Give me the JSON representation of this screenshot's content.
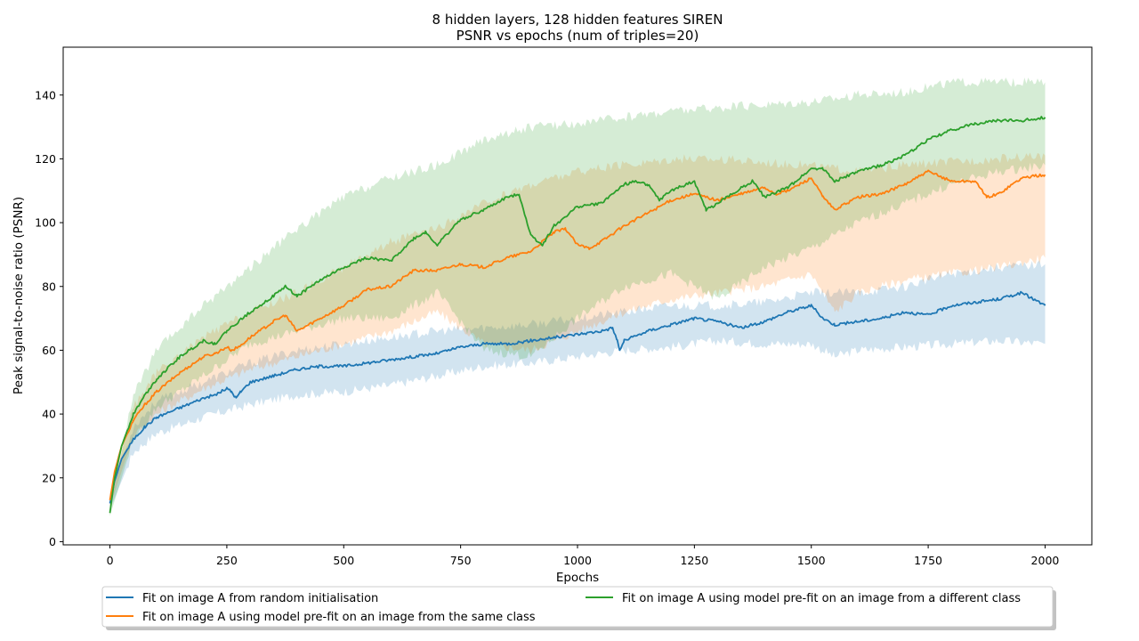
{
  "chart_data": {
    "type": "line",
    "title": [
      "8 hidden layers, 128 hidden features SIREN",
      "PSNR vs epochs (num of triples=20)"
    ],
    "xlabel": "Epochs",
    "ylabel": "Peak signal-to-noise ratio (PSNR)",
    "xlim": [
      -100,
      2100
    ],
    "ylim": [
      -1,
      155
    ],
    "xticks": [
      0,
      250,
      500,
      750,
      1000,
      1250,
      1500,
      1750,
      2000
    ],
    "yticks": [
      0,
      20,
      40,
      60,
      80,
      100,
      120,
      140
    ],
    "grid": false,
    "legend_position": "bottom-center",
    "band": "shaded spread around each series mean",
    "series": [
      {
        "name": "Fit on image A from random initialisation",
        "color": "#1f77b4",
        "points": [
          [
            0,
            12
          ],
          [
            10,
            19
          ],
          [
            25,
            26
          ],
          [
            50,
            32
          ],
          [
            75,
            36
          ],
          [
            100,
            39
          ],
          [
            150,
            42
          ],
          [
            200,
            45
          ],
          [
            225,
            46
          ],
          [
            250,
            48
          ],
          [
            260,
            47
          ],
          [
            270,
            45
          ],
          [
            280,
            47
          ],
          [
            300,
            50
          ],
          [
            350,
            52
          ],
          [
            400,
            54
          ],
          [
            450,
            55
          ],
          [
            500,
            55
          ],
          [
            550,
            56
          ],
          [
            600,
            57
          ],
          [
            650,
            58
          ],
          [
            700,
            59
          ],
          [
            750,
            61
          ],
          [
            800,
            62
          ],
          [
            850,
            62
          ],
          [
            900,
            63
          ],
          [
            950,
            64
          ],
          [
            1000,
            65
          ],
          [
            1050,
            66
          ],
          [
            1075,
            67
          ],
          [
            1085,
            63
          ],
          [
            1090,
            60
          ],
          [
            1100,
            63
          ],
          [
            1150,
            66
          ],
          [
            1200,
            68
          ],
          [
            1250,
            70
          ],
          [
            1300,
            69
          ],
          [
            1350,
            67
          ],
          [
            1400,
            69
          ],
          [
            1450,
            72
          ],
          [
            1500,
            74
          ],
          [
            1525,
            70
          ],
          [
            1550,
            68
          ],
          [
            1600,
            69
          ],
          [
            1650,
            70
          ],
          [
            1700,
            72
          ],
          [
            1750,
            71
          ],
          [
            1800,
            74
          ],
          [
            1850,
            75
          ],
          [
            1900,
            76
          ],
          [
            1950,
            78
          ],
          [
            1975,
            76
          ],
          [
            2000,
            74
          ]
        ],
        "band_lower": [
          [
            0,
            10
          ],
          [
            50,
            28
          ],
          [
            100,
            34
          ],
          [
            200,
            39
          ],
          [
            300,
            43
          ],
          [
            400,
            46
          ],
          [
            500,
            47
          ],
          [
            600,
            49
          ],
          [
            700,
            52
          ],
          [
            800,
            55
          ],
          [
            900,
            56
          ],
          [
            1000,
            58
          ],
          [
            1100,
            60
          ],
          [
            1200,
            61
          ],
          [
            1300,
            63
          ],
          [
            1400,
            62
          ],
          [
            1500,
            62
          ],
          [
            1550,
            58
          ],
          [
            1600,
            60
          ],
          [
            1700,
            61
          ],
          [
            1800,
            62
          ],
          [
            1900,
            63
          ],
          [
            2000,
            62
          ]
        ],
        "band_upper": [
          [
            0,
            14
          ],
          [
            50,
            36
          ],
          [
            100,
            44
          ],
          [
            200,
            50
          ],
          [
            300,
            56
          ],
          [
            400,
            60
          ],
          [
            500,
            62
          ],
          [
            600,
            64
          ],
          [
            700,
            66
          ],
          [
            800,
            67
          ],
          [
            900,
            68
          ],
          [
            1000,
            70
          ],
          [
            1100,
            72
          ],
          [
            1200,
            74
          ],
          [
            1300,
            74
          ],
          [
            1400,
            75
          ],
          [
            1500,
            78
          ],
          [
            1600,
            78
          ],
          [
            1700,
            80
          ],
          [
            1800,
            84
          ],
          [
            1900,
            86
          ],
          [
            2000,
            87
          ]
        ]
      },
      {
        "name": "Fit on image A using model pre-fit on an image from the same class",
        "color": "#ff7f0e",
        "points": [
          [
            0,
            13
          ],
          [
            10,
            22
          ],
          [
            25,
            30
          ],
          [
            50,
            38
          ],
          [
            75,
            43
          ],
          [
            100,
            47
          ],
          [
            150,
            53
          ],
          [
            200,
            58
          ],
          [
            225,
            59
          ],
          [
            250,
            61
          ],
          [
            260,
            60
          ],
          [
            275,
            61
          ],
          [
            300,
            64
          ],
          [
            350,
            69
          ],
          [
            375,
            71
          ],
          [
            400,
            66
          ],
          [
            450,
            70
          ],
          [
            500,
            74
          ],
          [
            550,
            79
          ],
          [
            600,
            80
          ],
          [
            650,
            85
          ],
          [
            700,
            85
          ],
          [
            750,
            87
          ],
          [
            800,
            86
          ],
          [
            850,
            89
          ],
          [
            900,
            91
          ],
          [
            950,
            97
          ],
          [
            975,
            98
          ],
          [
            1000,
            93
          ],
          [
            1025,
            92
          ],
          [
            1050,
            94
          ],
          [
            1100,
            99
          ],
          [
            1150,
            103
          ],
          [
            1200,
            107
          ],
          [
            1250,
            109
          ],
          [
            1300,
            107
          ],
          [
            1350,
            109
          ],
          [
            1400,
            111
          ],
          [
            1425,
            109
          ],
          [
            1450,
            110
          ],
          [
            1500,
            114
          ],
          [
            1525,
            108
          ],
          [
            1550,
            104
          ],
          [
            1600,
            108
          ],
          [
            1650,
            109
          ],
          [
            1700,
            112
          ],
          [
            1750,
            116
          ],
          [
            1800,
            113
          ],
          [
            1850,
            113
          ],
          [
            1875,
            108
          ],
          [
            1900,
            109
          ],
          [
            1950,
            114
          ],
          [
            2000,
            115
          ]
        ],
        "band_lower": [
          [
            0,
            11
          ],
          [
            50,
            33
          ],
          [
            100,
            40
          ],
          [
            200,
            48
          ],
          [
            300,
            54
          ],
          [
            400,
            58
          ],
          [
            500,
            62
          ],
          [
            600,
            66
          ],
          [
            700,
            72
          ],
          [
            800,
            62
          ],
          [
            900,
            60
          ],
          [
            1000,
            66
          ],
          [
            1100,
            72
          ],
          [
            1200,
            76
          ],
          [
            1300,
            78
          ],
          [
            1400,
            80
          ],
          [
            1500,
            84
          ],
          [
            1550,
            72
          ],
          [
            1600,
            78
          ],
          [
            1700,
            82
          ],
          [
            1800,
            84
          ],
          [
            1900,
            86
          ],
          [
            2000,
            89
          ]
        ],
        "band_upper": [
          [
            0,
            15
          ],
          [
            50,
            42
          ],
          [
            100,
            53
          ],
          [
            200,
            64
          ],
          [
            300,
            72
          ],
          [
            400,
            78
          ],
          [
            500,
            86
          ],
          [
            600,
            94
          ],
          [
            700,
            98
          ],
          [
            800,
            106
          ],
          [
            900,
            112
          ],
          [
            1000,
            116
          ],
          [
            1100,
            118
          ],
          [
            1200,
            120
          ],
          [
            1300,
            120
          ],
          [
            1400,
            119
          ],
          [
            1500,
            118
          ],
          [
            1600,
            116
          ],
          [
            1700,
            118
          ],
          [
            1800,
            119
          ],
          [
            1900,
            120
          ],
          [
            2000,
            121
          ]
        ]
      },
      {
        "name": "Fit on image A using model pre-fit on an image from a different class",
        "color": "#2ca02c",
        "points": [
          [
            0,
            9
          ],
          [
            10,
            20
          ],
          [
            25,
            30
          ],
          [
            50,
            40
          ],
          [
            75,
            46
          ],
          [
            100,
            51
          ],
          [
            150,
            58
          ],
          [
            200,
            63
          ],
          [
            225,
            62
          ],
          [
            250,
            66
          ],
          [
            300,
            72
          ],
          [
            350,
            77
          ],
          [
            375,
            80
          ],
          [
            400,
            77
          ],
          [
            450,
            82
          ],
          [
            500,
            86
          ],
          [
            550,
            89
          ],
          [
            600,
            88
          ],
          [
            650,
            95
          ],
          [
            675,
            97
          ],
          [
            700,
            93
          ],
          [
            750,
            101
          ],
          [
            800,
            104
          ],
          [
            850,
            108
          ],
          [
            875,
            109
          ],
          [
            900,
            96
          ],
          [
            925,
            93
          ],
          [
            950,
            99
          ],
          [
            1000,
            105
          ],
          [
            1050,
            106
          ],
          [
            1100,
            112
          ],
          [
            1125,
            113
          ],
          [
            1150,
            112
          ],
          [
            1175,
            107
          ],
          [
            1200,
            110
          ],
          [
            1250,
            113
          ],
          [
            1275,
            104
          ],
          [
            1300,
            106
          ],
          [
            1350,
            111
          ],
          [
            1375,
            113
          ],
          [
            1400,
            108
          ],
          [
            1450,
            111
          ],
          [
            1500,
            117
          ],
          [
            1525,
            117
          ],
          [
            1550,
            113
          ],
          [
            1600,
            116
          ],
          [
            1650,
            118
          ],
          [
            1700,
            121
          ],
          [
            1750,
            126
          ],
          [
            1800,
            129
          ],
          [
            1850,
            131
          ],
          [
            1900,
            132
          ],
          [
            1950,
            132
          ],
          [
            2000,
            133
          ]
        ],
        "band_lower": [
          [
            0,
            8
          ],
          [
            50,
            32
          ],
          [
            100,
            42
          ],
          [
            200,
            52
          ],
          [
            300,
            62
          ],
          [
            400,
            66
          ],
          [
            500,
            70
          ],
          [
            600,
            70
          ],
          [
            700,
            78
          ],
          [
            800,
            60
          ],
          [
            900,
            58
          ],
          [
            1000,
            70
          ],
          [
            1100,
            80
          ],
          [
            1200,
            84
          ],
          [
            1300,
            76
          ],
          [
            1400,
            86
          ],
          [
            1500,
            92
          ],
          [
            1600,
            100
          ],
          [
            1700,
            106
          ],
          [
            1800,
            112
          ],
          [
            1900,
            116
          ],
          [
            2000,
            118
          ]
        ],
        "band_upper": [
          [
            0,
            10
          ],
          [
            50,
            46
          ],
          [
            100,
            60
          ],
          [
            200,
            74
          ],
          [
            300,
            86
          ],
          [
            400,
            98
          ],
          [
            500,
            108
          ],
          [
            600,
            114
          ],
          [
            700,
            118
          ],
          [
            800,
            126
          ],
          [
            900,
            130
          ],
          [
            1000,
            131
          ],
          [
            1100,
            133
          ],
          [
            1200,
            135
          ],
          [
            1300,
            136
          ],
          [
            1400,
            137
          ],
          [
            1500,
            138
          ],
          [
            1600,
            140
          ],
          [
            1700,
            141
          ],
          [
            1800,
            144
          ],
          [
            1900,
            144
          ],
          [
            2000,
            144
          ]
        ]
      }
    ]
  }
}
